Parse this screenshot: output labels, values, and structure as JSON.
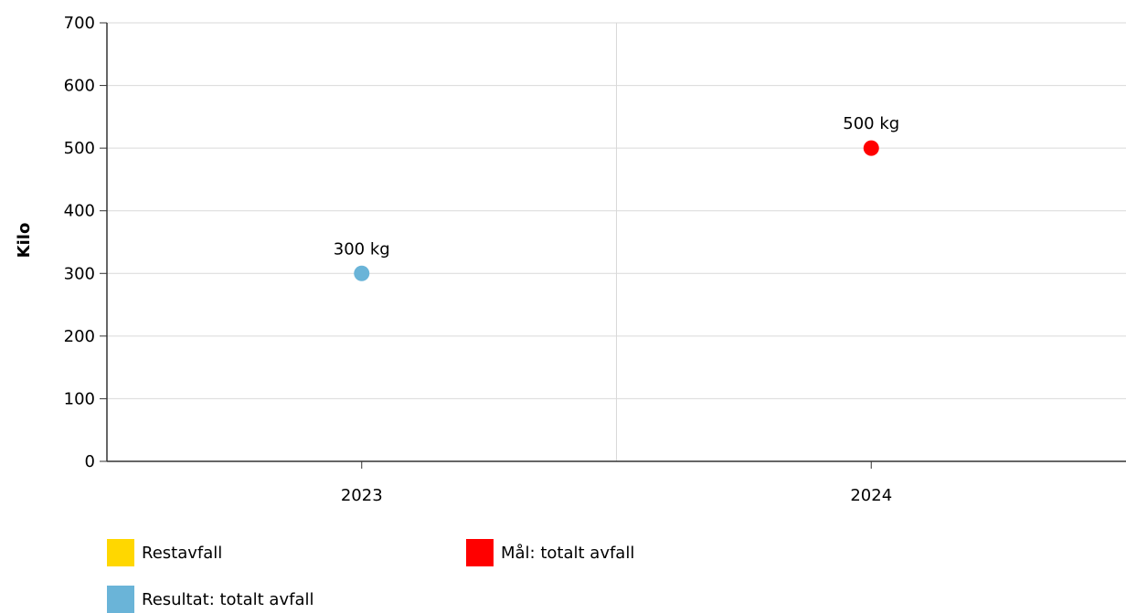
{
  "chart_data": {
    "type": "scatter",
    "ylabel": "Kilo",
    "xlabel": "",
    "categories": [
      "2023",
      "2024"
    ],
    "ylim": [
      0,
      700
    ],
    "yticks": [
      0,
      100,
      200,
      300,
      400,
      500,
      600,
      700
    ],
    "grid": true,
    "series": [
      {
        "name": "Restavfall",
        "color": "#ffd700",
        "values": [
          null,
          null
        ],
        "labels": [
          null,
          null
        ]
      },
      {
        "name": "Mål: totalt avfall",
        "color": "#ff0000",
        "values": [
          null,
          500
        ],
        "labels": [
          null,
          "500 kg"
        ]
      },
      {
        "name": "Resultat: totalt avfall",
        "color": "#6ab4d8",
        "values": [
          300,
          null
        ],
        "labels": [
          "300 kg",
          null
        ]
      }
    ],
    "legend_position": "bottom"
  }
}
